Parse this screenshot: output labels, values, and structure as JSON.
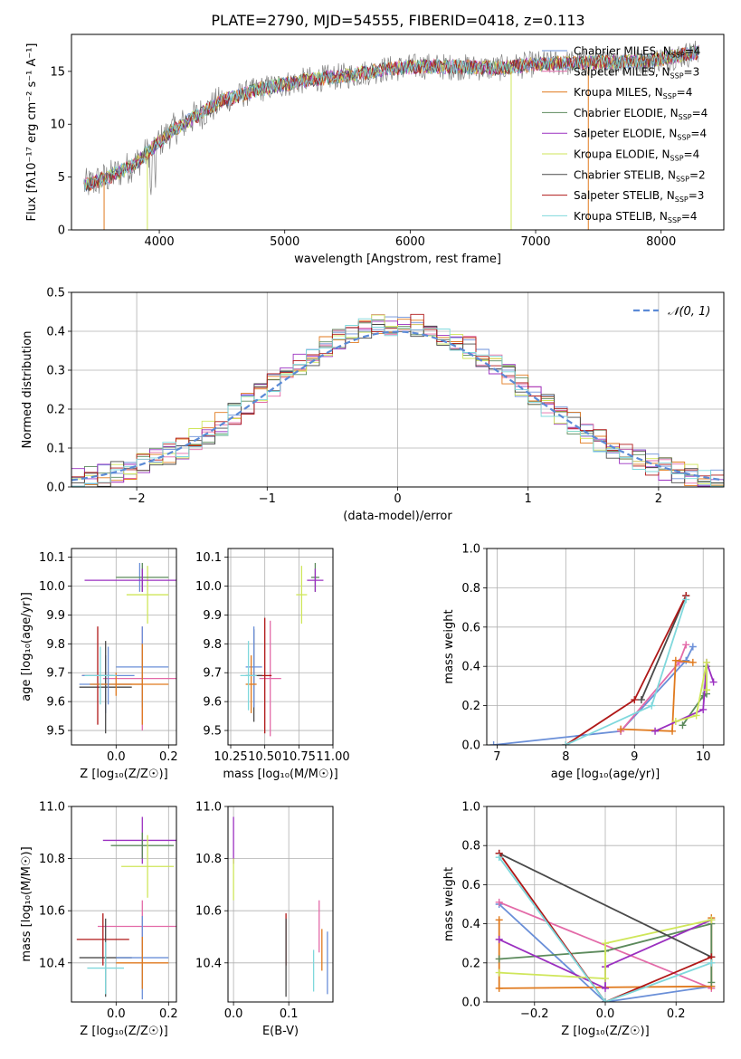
{
  "figure_title": "PLATE=2790, MJD=54555, FIBERID=0418, z=0.113",
  "colors": {
    "chabrier_miles": "#6a8fd8",
    "salpeter_miles": "#e36aa8",
    "kroupa_miles": "#e07a1e",
    "chabrier_elodie": "#5c8a5c",
    "salpeter_elodie": "#9b30c0",
    "kroupa_elodie": "#cfe65a",
    "chabrier_stelib": "#4a4a4a",
    "salpeter_stelib": "#b01818",
    "kroupa_stelib": "#7fd8dc",
    "data": "#808080",
    "normal_curve": "#5b8ad6",
    "grid": "#b0b0b0"
  },
  "chart_data": [
    {
      "id": "spectrum",
      "type": "line",
      "title": "PLATE=2790, MJD=54555, FIBERID=0418, z=0.113",
      "xlabel": "wavelength [Angstrom, rest frame]",
      "ylabel": "Flux [fλ10⁻¹⁷ erg cm⁻² s⁻¹ A⁻¹]",
      "xlim": [
        3300,
        8500
      ],
      "ylim": [
        0,
        18.5
      ],
      "xticks": [
        4000,
        5000,
        6000,
        7000,
        8000
      ],
      "yticks": [
        0,
        5,
        10,
        15
      ],
      "grid": false,
      "legend_position": "right",
      "continuum_x": [
        3400,
        3600,
        3800,
        3950,
        4100,
        4300,
        4500,
        4800,
        5000,
        5200,
        5500,
        5800,
        6100,
        6400,
        6700,
        7000,
        7300,
        7600,
        7900,
        8300
      ],
      "continuum_y": [
        4.2,
        5.0,
        6.2,
        7.8,
        9.4,
        10.8,
        12.2,
        13.3,
        13.8,
        14.2,
        14.6,
        15.2,
        15.5,
        15.4,
        15.3,
        15.7,
        15.8,
        15.9,
        16.0,
        16.8
      ],
      "legend": [
        {
          "label": "Chabrier MILES, N",
          "sub": "SSP",
          "n": "=4",
          "color_key": "chabrier_miles"
        },
        {
          "label": "Salpeter MILES, N",
          "sub": "SSP",
          "n": "=3",
          "color_key": "salpeter_miles"
        },
        {
          "label": "Kroupa MILES, N",
          "sub": "SSP",
          "n": "=4",
          "color_key": "kroupa_miles"
        },
        {
          "label": "Chabrier ELODIE, N",
          "sub": "SSP",
          "n": "=4",
          "color_key": "chabrier_elodie"
        },
        {
          "label": "Salpeter ELODIE, N",
          "sub": "SSP",
          "n": "=4",
          "color_key": "salpeter_elodie"
        },
        {
          "label": "Kroupa ELODIE, N",
          "sub": "SSP",
          "n": "=4",
          "color_key": "kroupa_elodie"
        },
        {
          "label": "Chabrier STELIB, N",
          "sub": "SSP",
          "n": "=2",
          "color_key": "chabrier_stelib"
        },
        {
          "label": "Salpeter STELIB, N",
          "sub": "SSP",
          "n": "=3",
          "color_key": "salpeter_stelib"
        },
        {
          "label": "Kroupa STELIB, N",
          "sub": "SSP",
          "n": "=4",
          "color_key": "kroupa_stelib"
        }
      ]
    },
    {
      "id": "residuals",
      "type": "histogram",
      "xlabel": "(data-model)/error",
      "ylabel": "Normed distribution",
      "xlim": [
        -2.5,
        2.5
      ],
      "ylim": [
        0,
        0.5
      ],
      "xticks": [
        -2,
        -1,
        0,
        1,
        2
      ],
      "yticks": [
        0.0,
        0.1,
        0.2,
        0.3,
        0.4,
        0.5
      ],
      "grid": true,
      "legend_position": "top-right",
      "bin_width": 0.1,
      "reference_curve": {
        "label": "𝒩(0, 1)",
        "mean": 0,
        "sigma": 1
      }
    },
    {
      "id": "age_vs_z",
      "type": "scatter",
      "xlabel": "Z [log₁₀(Z/Z☉)]",
      "ylabel": "age [log₁₀(age/yr)]",
      "xlim": [
        -0.17,
        0.23
      ],
      "ylim": [
        9.45,
        10.13
      ],
      "xticks": [
        0.0,
        0.2
      ],
      "xticklabels": [
        "0.0",
        "0.2"
      ],
      "yticks": [
        9.5,
        9.6,
        9.7,
        9.8,
        9.9,
        10.0,
        10.1
      ],
      "grid": true,
      "points": [
        {
          "x": 0.09,
          "y": 10.03,
          "xerr": 0.0,
          "yerr": 0.05,
          "color_key": "chabrier_miles"
        },
        {
          "x": 0.1,
          "y": 9.68,
          "xerr": 0.15,
          "yerr": 0.18,
          "color_key": "salpeter_miles"
        },
        {
          "x": -0.04,
          "y": 9.66,
          "xerr": 0.1,
          "yerr": 0.1,
          "color_key": "chabrier_miles"
        },
        {
          "x": 0.12,
          "y": 9.97,
          "xerr": 0.08,
          "yerr": 0.1,
          "color_key": "kroupa_elodie"
        },
        {
          "x": 0.1,
          "y": 10.03,
          "xerr": 0.1,
          "yerr": 0.05,
          "color_key": "chabrier_elodie"
        },
        {
          "x": 0.1,
          "y": 10.02,
          "xerr": 0.22,
          "yerr": 0.04,
          "color_key": "salpeter_elodie"
        },
        {
          "x": -0.04,
          "y": 9.65,
          "xerr": 0.1,
          "yerr": 0.16,
          "color_key": "chabrier_stelib"
        },
        {
          "x": -0.07,
          "y": 9.69,
          "xerr": 0.06,
          "yerr": 0.17,
          "color_key": "salpeter_stelib"
        },
        {
          "x": 0.0,
          "y": 9.66,
          "xerr": 0.1,
          "yerr": 0.04,
          "color_key": "kroupa_miles"
        },
        {
          "x": -0.03,
          "y": 9.69,
          "xerr": 0.1,
          "yerr": 0.1,
          "color_key": "chabrier_miles"
        },
        {
          "x": 0.1,
          "y": 9.72,
          "xerr": 0.1,
          "yerr": 0.14,
          "color_key": "chabrier_miles"
        },
        {
          "x": 0.1,
          "y": 9.66,
          "xerr": 0.1,
          "yerr": 0.14,
          "color_key": "kroupa_miles"
        },
        {
          "x": -0.06,
          "y": 9.69,
          "xerr": 0.06,
          "yerr": 0.1,
          "color_key": "kroupa_stelib"
        }
      ]
    },
    {
      "id": "age_vs_mass",
      "type": "scatter",
      "xlabel": "mass [log₁₀(M/M☉)]",
      "ylabel": "",
      "xlim": [
        10.23,
        11.0
      ],
      "ylim": [
        9.45,
        10.13
      ],
      "xticks": [
        10.25,
        10.5,
        10.75,
        11.0
      ],
      "xticklabels": [
        "10.25",
        "10.50",
        "10.75",
        "11.00"
      ],
      "yticks": [
        9.5,
        9.6,
        9.7,
        9.8,
        9.9,
        10.0,
        10.1
      ],
      "grid": true,
      "points": [
        {
          "x": 10.87,
          "y": 10.03,
          "xerr": 0.03,
          "yerr": 0.05,
          "color_key": "chabrier_elodie"
        },
        {
          "x": 10.87,
          "y": 10.02,
          "xerr": 0.06,
          "yerr": 0.04,
          "color_key": "salpeter_elodie"
        },
        {
          "x": 10.77,
          "y": 9.97,
          "xerr": 0.04,
          "yerr": 0.1,
          "color_key": "kroupa_elodie"
        },
        {
          "x": 10.54,
          "y": 9.68,
          "xerr": 0.08,
          "yerr": 0.2,
          "color_key": "salpeter_miles"
        },
        {
          "x": 10.5,
          "y": 9.69,
          "xerr": 0.05,
          "yerr": 0.2,
          "color_key": "salpeter_stelib"
        },
        {
          "x": 10.42,
          "y": 9.69,
          "xerr": 0.06,
          "yerr": 0.16,
          "color_key": "chabrier_stelib"
        },
        {
          "x": 10.42,
          "y": 9.72,
          "xerr": 0.06,
          "yerr": 0.14,
          "color_key": "chabrier_miles"
        },
        {
          "x": 10.4,
          "y": 9.66,
          "xerr": 0.04,
          "yerr": 0.1,
          "color_key": "kroupa_miles"
        },
        {
          "x": 10.38,
          "y": 9.69,
          "xerr": 0.06,
          "yerr": 0.12,
          "color_key": "kroupa_stelib"
        }
      ]
    },
    {
      "id": "massweight_vs_age",
      "type": "line",
      "xlabel": "age [log₁₀(age/yr)]",
      "ylabel": "mass weight",
      "xlim": [
        6.85,
        10.3
      ],
      "ylim": [
        0,
        1.0
      ],
      "xticks": [
        7,
        8,
        9,
        10
      ],
      "yticks": [
        0.0,
        0.2,
        0.4,
        0.6,
        0.8,
        1.0
      ],
      "grid": true,
      "series": [
        {
          "color_key": "chabrier_miles",
          "x": [
            6.95,
            8.8,
            9.75,
            9.85
          ],
          "y": [
            0.0,
            0.07,
            0.43,
            0.5
          ]
        },
        {
          "color_key": "salpeter_miles",
          "x": [
            8.8,
            9.65,
            9.75
          ],
          "y": [
            0.07,
            0.42,
            0.51
          ]
        },
        {
          "color_key": "kroupa_miles",
          "x": [
            8.8,
            9.55,
            9.6,
            9.85
          ],
          "y": [
            0.08,
            0.07,
            0.43,
            0.42
          ]
        },
        {
          "color_key": "chabrier_elodie",
          "x": [
            9.7,
            10.0,
            10.05,
            10.05
          ],
          "y": [
            0.1,
            0.25,
            0.26,
            0.4
          ]
        },
        {
          "color_key": "salpeter_elodie",
          "x": [
            9.3,
            10.0,
            10.05,
            10.15
          ],
          "y": [
            0.07,
            0.18,
            0.42,
            0.32
          ]
        },
        {
          "color_key": "kroupa_elodie",
          "x": [
            9.6,
            9.9,
            10.05,
            10.05
          ],
          "y": [
            0.12,
            0.15,
            0.42,
            0.28
          ]
        },
        {
          "color_key": "chabrier_stelib",
          "x": [
            9.1,
            9.75
          ],
          "y": [
            0.23,
            0.76
          ]
        },
        {
          "color_key": "salpeter_stelib",
          "x": [
            8.0,
            9.0,
            9.75
          ],
          "y": [
            0.0,
            0.23,
            0.76
          ]
        },
        {
          "color_key": "kroupa_stelib",
          "x": [
            8.0,
            9.25,
            9.75
          ],
          "y": [
            0.0,
            0.2,
            0.74
          ]
        }
      ]
    },
    {
      "id": "mass_vs_z",
      "type": "scatter",
      "xlabel": "Z [log₁₀(Z/Z☉)]",
      "ylabel": "mass [log₁₀(M/M☉)]",
      "xlim": [
        -0.17,
        0.23
      ],
      "ylim": [
        10.25,
        11.0
      ],
      "xticks": [
        0.0,
        0.2
      ],
      "xticklabels": [
        "0.0",
        "0.2"
      ],
      "yticks": [
        10.4,
        10.6,
        10.8,
        11.0
      ],
      "grid": true,
      "points": [
        {
          "x": 0.1,
          "y": 10.87,
          "xerr": 0.15,
          "yerr": 0.09,
          "color_key": "salpeter_elodie"
        },
        {
          "x": 0.1,
          "y": 10.85,
          "xerr": 0.12,
          "yerr": 0.05,
          "color_key": "chabrier_elodie"
        },
        {
          "x": 0.12,
          "y": 10.77,
          "xerr": 0.1,
          "yerr": 0.12,
          "color_key": "kroupa_elodie"
        },
        {
          "x": 0.1,
          "y": 10.54,
          "xerr": 0.17,
          "yerr": 0.1,
          "color_key": "salpeter_miles"
        },
        {
          "x": -0.05,
          "y": 10.49,
          "xerr": 0.1,
          "yerr": 0.1,
          "color_key": "salpeter_stelib"
        },
        {
          "x": -0.04,
          "y": 10.42,
          "xerr": 0.1,
          "yerr": 0.15,
          "color_key": "chabrier_stelib"
        },
        {
          "x": 0.1,
          "y": 10.42,
          "xerr": 0.1,
          "yerr": 0.16,
          "color_key": "chabrier_miles"
        },
        {
          "x": 0.1,
          "y": 10.4,
          "xerr": 0.1,
          "yerr": 0.1,
          "color_key": "kroupa_miles"
        },
        {
          "x": -0.04,
          "y": 10.38,
          "xerr": 0.07,
          "yerr": 0.1,
          "color_key": "kroupa_stelib"
        }
      ]
    },
    {
      "id": "mass_vs_ebv",
      "type": "scatter",
      "xlabel": "E(B-V)",
      "ylabel": "",
      "xlim": [
        -0.01,
        0.18
      ],
      "ylim": [
        10.25,
        11.0
      ],
      "xticks": [
        0.0,
        0.1
      ],
      "xticklabels": [
        "0.0",
        "0.1"
      ],
      "yticks": [
        10.4,
        10.6,
        10.8,
        11.0
      ],
      "grid": true,
      "points": [
        {
          "x": 0.0,
          "y": 10.87,
          "yerr": 0.09,
          "color_key": "salpeter_elodie"
        },
        {
          "x": 0.0,
          "y": 10.72,
          "yerr": 0.08,
          "color_key": "kroupa_elodie"
        },
        {
          "x": 0.095,
          "y": 10.49,
          "yerr": 0.1,
          "color_key": "salpeter_stelib"
        },
        {
          "x": 0.095,
          "y": 10.42,
          "yerr": 0.15,
          "color_key": "chabrier_stelib"
        },
        {
          "x": 0.145,
          "y": 10.37,
          "yerr": 0.08,
          "color_key": "kroupa_stelib"
        },
        {
          "x": 0.155,
          "y": 10.54,
          "yerr": 0.1,
          "color_key": "salpeter_miles"
        },
        {
          "x": 0.16,
          "y": 10.45,
          "yerr": 0.08,
          "color_key": "kroupa_miles"
        },
        {
          "x": 0.17,
          "y": 10.4,
          "yerr": 0.12,
          "color_key": "chabrier_miles"
        }
      ]
    },
    {
      "id": "massweight_vs_z",
      "type": "line",
      "xlabel": "Z [log₁₀(Z/Z☉)]",
      "ylabel": "mass weight",
      "xlim": [
        -0.335,
        0.335
      ],
      "ylim": [
        0,
        1.0
      ],
      "xticks": [
        -0.2,
        0.0,
        0.2
      ],
      "xticklabels": [
        "−0.2",
        "0.0",
        "0.2"
      ],
      "yticks": [
        0.0,
        0.2,
        0.4,
        0.6,
        0.8,
        1.0
      ],
      "grid": true,
      "series": [
        {
          "color_key": "chabrier_miles",
          "x": [
            -0.3,
            0.0,
            0.3
          ],
          "y": [
            0.5,
            0.0,
            0.08
          ]
        },
        {
          "color_key": "salpeter_miles",
          "x": [
            -0.3,
            0.3
          ],
          "y": [
            0.51,
            0.07
          ]
        },
        {
          "color_key": "kroupa_miles",
          "x": [
            -0.3,
            -0.3,
            0.3,
            0.3
          ],
          "y": [
            0.42,
            0.07,
            0.08,
            0.43
          ]
        },
        {
          "color_key": "chabrier_elodie",
          "x": [
            -0.3,
            0.0,
            0.3,
            0.3
          ],
          "y": [
            0.22,
            0.26,
            0.4,
            0.1
          ]
        },
        {
          "color_key": "salpeter_elodie",
          "x": [
            -0.3,
            0.0,
            0.0,
            0.3
          ],
          "y": [
            0.32,
            0.07,
            0.18,
            0.42
          ]
        },
        {
          "color_key": "kroupa_elodie",
          "x": [
            -0.3,
            0.0,
            0.0,
            0.3
          ],
          "y": [
            0.15,
            0.12,
            0.3,
            0.42
          ]
        },
        {
          "color_key": "chabrier_stelib",
          "x": [
            -0.3,
            0.3
          ],
          "y": [
            0.76,
            0.23
          ]
        },
        {
          "color_key": "salpeter_stelib",
          "x": [
            -0.3,
            0.0,
            0.3
          ],
          "y": [
            0.76,
            0.0,
            0.23
          ]
        },
        {
          "color_key": "kroupa_stelib",
          "x": [
            -0.3,
            0.0,
            0.3
          ],
          "y": [
            0.74,
            0.0,
            0.2
          ]
        }
      ]
    }
  ]
}
